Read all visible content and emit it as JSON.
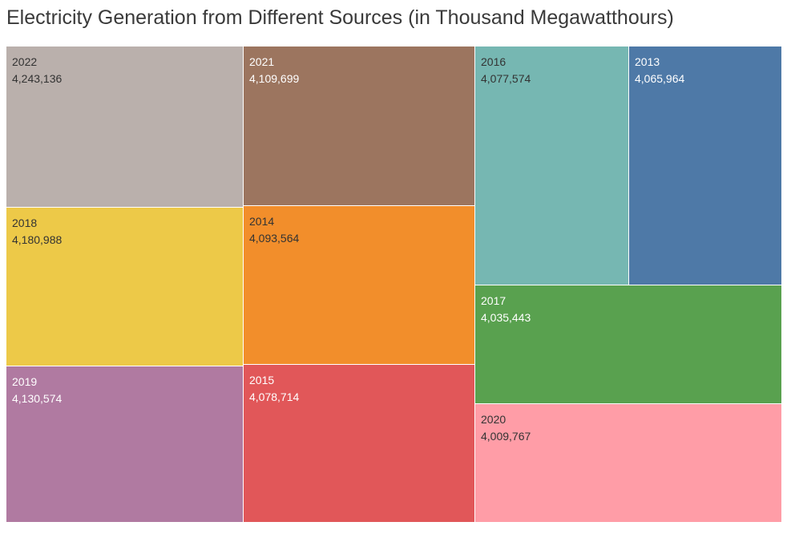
{
  "title": "Electricity Generation from Different Sources (in Thousand Megawatthours)",
  "chart_data": {
    "type": "treemap",
    "title": "Electricity Generation from Different Sources (in Thousand Megawatthours)",
    "items": [
      {
        "label": "2022",
        "value": 4243136,
        "display_value": "4,243,136",
        "color": "#BAB0AC",
        "text_color": "#333333"
      },
      {
        "label": "2018",
        "value": 4180988,
        "display_value": "4,180,988",
        "color": "#EDC948",
        "text_color": "#333333"
      },
      {
        "label": "2019",
        "value": 4130574,
        "display_value": "4,130,574",
        "color": "#B07AA1",
        "text_color": "#ffffff"
      },
      {
        "label": "2021",
        "value": 4109699,
        "display_value": "4,109,699",
        "color": "#9C755F",
        "text_color": "#ffffff"
      },
      {
        "label": "2014",
        "value": 4093564,
        "display_value": "4,093,564",
        "color": "#F28E2B",
        "text_color": "#333333"
      },
      {
        "label": "2015",
        "value": 4078714,
        "display_value": "4,078,714",
        "color": "#E15759",
        "text_color": "#ffffff"
      },
      {
        "label": "2016",
        "value": 4077574,
        "display_value": "4,077,574",
        "color": "#76B7B2",
        "text_color": "#333333"
      },
      {
        "label": "2013",
        "value": 4065964,
        "display_value": "4,065,964",
        "color": "#4E79A7",
        "text_color": "#ffffff"
      },
      {
        "label": "2017",
        "value": 4035443,
        "display_value": "4,035,443",
        "color": "#59A14F",
        "text_color": "#ffffff"
      },
      {
        "label": "2020",
        "value": 4009767,
        "display_value": "4,009,767",
        "color": "#FF9DA7",
        "text_color": "#333333"
      }
    ]
  }
}
